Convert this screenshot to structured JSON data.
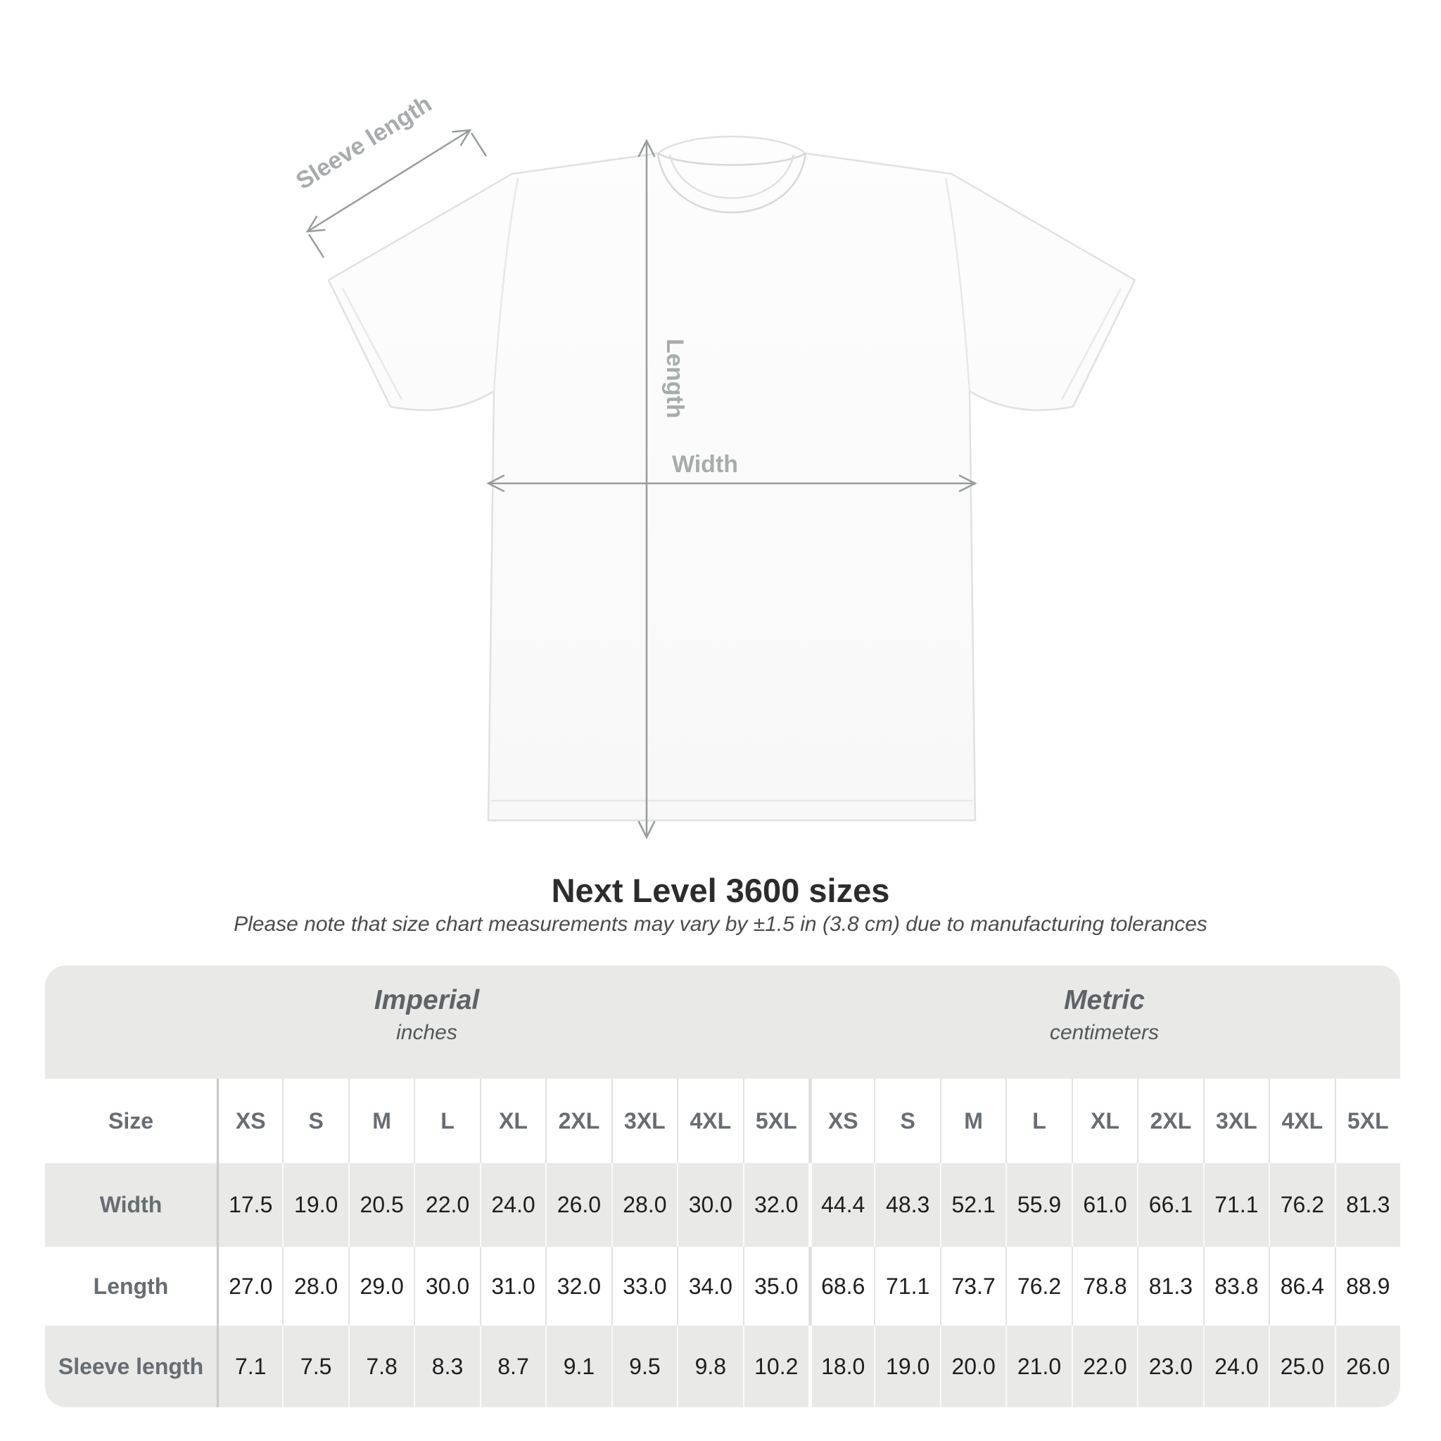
{
  "title": "Next Level 3600 sizes",
  "subtitle": "Please note that size chart measurements may vary by ±1.5 in (3.8 cm) due to manufacturing tolerances",
  "diagram": {
    "sleeve_label": "Sleeve length",
    "length_label": "Length",
    "width_label": "Width",
    "line_color": "#989c9d",
    "label_color": "#a7abac",
    "shirt_fill": "#fcfcfc",
    "shirt_outline": "#e1e1e1"
  },
  "table": {
    "size_label": "Size",
    "sizes": [
      "XS",
      "S",
      "M",
      "L",
      "XL",
      "2XL",
      "3XL",
      "4XL",
      "5XL"
    ],
    "sections": [
      {
        "name": "Imperial",
        "unit": "inches"
      },
      {
        "name": "Metric",
        "unit": "centimeters"
      }
    ],
    "rows": [
      {
        "label": "Width",
        "imperial": [
          "17.5",
          "19.0",
          "20.5",
          "22.0",
          "24.0",
          "26.0",
          "28.0",
          "30.0",
          "32.0"
        ],
        "metric": [
          "44.4",
          "48.3",
          "52.1",
          "55.9",
          "61.0",
          "66.1",
          "71.1",
          "76.2",
          "81.3"
        ]
      },
      {
        "label": "Length",
        "imperial": [
          "27.0",
          "28.0",
          "29.0",
          "30.0",
          "31.0",
          "32.0",
          "33.0",
          "34.0",
          "35.0"
        ],
        "metric": [
          "68.6",
          "71.1",
          "73.7",
          "76.2",
          "78.8",
          "81.3",
          "83.8",
          "86.4",
          "88.9"
        ]
      },
      {
        "label": "Sleeve length",
        "imperial": [
          "7.1",
          "7.5",
          "7.8",
          "8.3",
          "8.7",
          "9.1",
          "9.5",
          "9.8",
          "10.2"
        ],
        "metric": [
          "18.0",
          "19.0",
          "20.0",
          "21.0",
          "22.0",
          "23.0",
          "24.0",
          "25.0",
          "26.0"
        ]
      }
    ],
    "colors": {
      "band_gray": "#e9e9e8",
      "label_gray": "#676d72",
      "value_dark": "#1e1e20"
    }
  },
  "chart_data": {
    "type": "table",
    "title": "Next Level 3600 sizes",
    "note": "Measurements may vary by ±1.5 in (3.8 cm) due to manufacturing tolerances",
    "sections": [
      "Imperial (inches)",
      "Metric (centimeters)"
    ],
    "columns": [
      "XS",
      "S",
      "M",
      "L",
      "XL",
      "2XL",
      "3XL",
      "4XL",
      "5XL"
    ],
    "rows": [
      {
        "label": "Width",
        "imperial_in": [
          17.5,
          19.0,
          20.5,
          22.0,
          24.0,
          26.0,
          28.0,
          30.0,
          32.0
        ],
        "metric_cm": [
          44.4,
          48.3,
          52.1,
          55.9,
          61.0,
          66.1,
          71.1,
          76.2,
          81.3
        ]
      },
      {
        "label": "Length",
        "imperial_in": [
          27.0,
          28.0,
          29.0,
          30.0,
          31.0,
          32.0,
          33.0,
          34.0,
          35.0
        ],
        "metric_cm": [
          68.6,
          71.1,
          73.7,
          76.2,
          78.8,
          81.3,
          83.8,
          86.4,
          88.9
        ]
      },
      {
        "label": "Sleeve length",
        "imperial_in": [
          7.1,
          7.5,
          7.8,
          8.3,
          8.7,
          9.1,
          9.5,
          9.8,
          10.2
        ],
        "metric_cm": [
          18.0,
          19.0,
          20.0,
          21.0,
          22.0,
          23.0,
          24.0,
          25.0,
          26.0
        ]
      }
    ]
  }
}
